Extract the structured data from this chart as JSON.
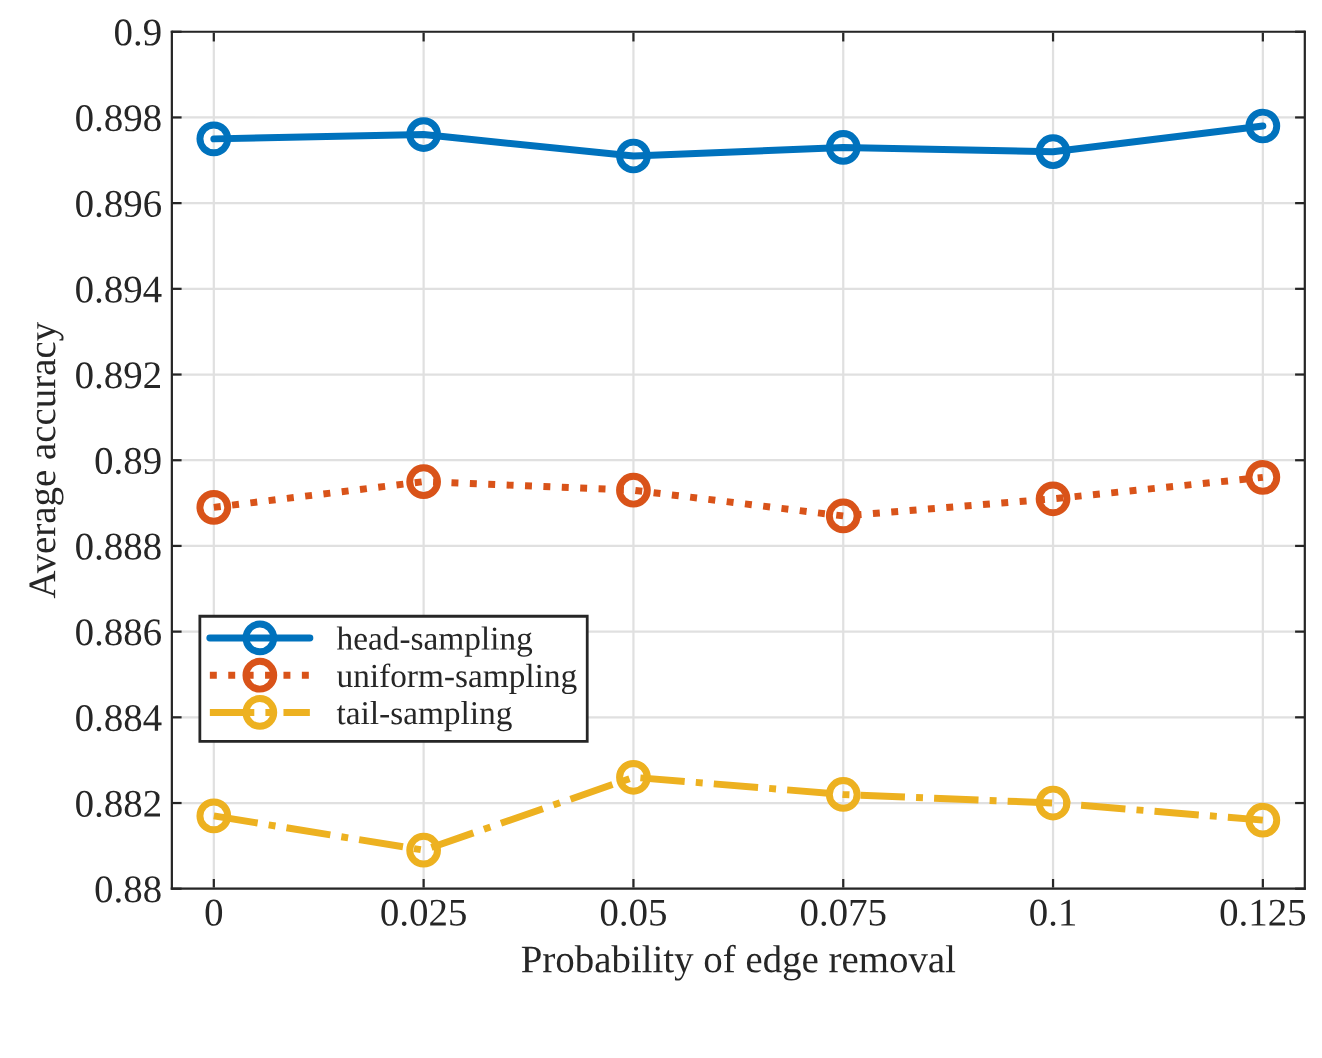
{
  "chart_data": {
    "type": "line",
    "xlabel": "Probability of edge removal",
    "ylabel": "Average accuracy",
    "x": [
      0,
      0.025,
      0.05,
      0.075,
      0.1,
      0.125
    ],
    "series": [
      {
        "name": "head-sampling",
        "color": "#0072bd",
        "line_style": "solid",
        "values": [
          0.8975,
          0.8976,
          0.8971,
          0.8973,
          0.8972,
          0.8978
        ]
      },
      {
        "name": "uniform-sampling",
        "color": "#d95319",
        "line_style": "dotted",
        "values": [
          0.8889,
          0.8895,
          0.8893,
          0.8887,
          0.8891,
          0.8896
        ]
      },
      {
        "name": "tail-sampling",
        "color": "#edb120",
        "line_style": "dashdot",
        "values": [
          0.8817,
          0.8809,
          0.8826,
          0.8822,
          0.882,
          0.8816
        ]
      }
    ],
    "xlim": [
      -0.005,
      0.13
    ],
    "xticks": [
      0,
      0.025,
      0.05,
      0.075,
      0.1,
      0.125
    ],
    "ylim": [
      0.88,
      0.9
    ],
    "yticks": [
      0.88,
      0.882,
      0.884,
      0.886,
      0.888,
      0.89,
      0.892,
      0.894,
      0.896,
      0.898,
      0.9
    ],
    "grid": true,
    "legend": "left",
    "marker": "circle"
  }
}
